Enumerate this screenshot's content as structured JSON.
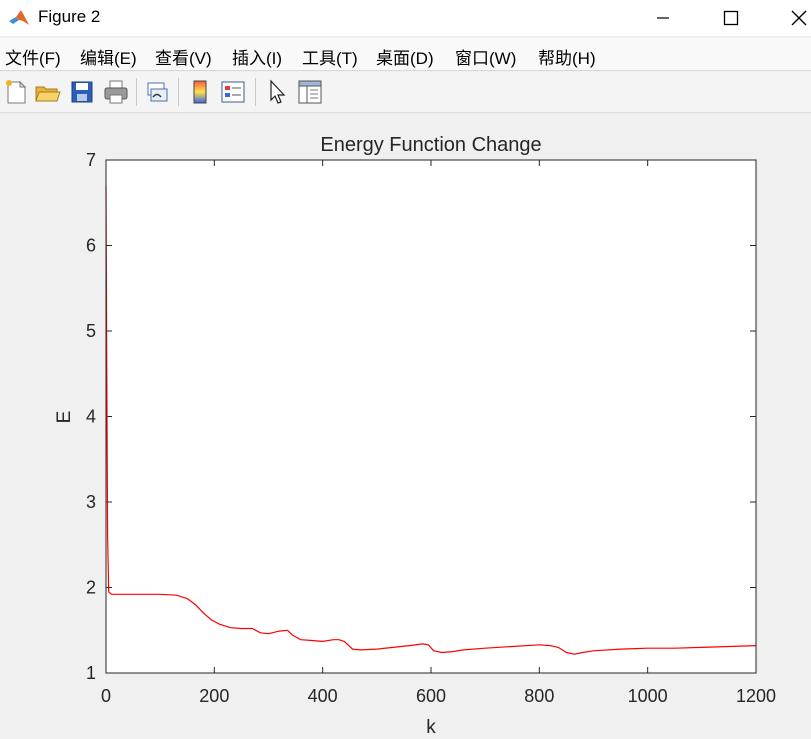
{
  "window": {
    "title": "Figure 2",
    "icon": "matlab-logo-icon",
    "controls": [
      "minimize-icon",
      "maximize-icon",
      "close-icon"
    ]
  },
  "menu": [
    {
      "label": "文件(F)"
    },
    {
      "label": "编辑(E)"
    },
    {
      "label": "查看(V)"
    },
    {
      "label": "插入(I)"
    },
    {
      "label": "工具(T)"
    },
    {
      "label": "桌面(D)"
    },
    {
      "label": "窗口(W)"
    },
    {
      "label": "帮助(H)"
    }
  ],
  "toolbar": {
    "tools": [
      "new-figure-icon",
      "open-file-icon",
      "save-icon",
      "print-icon",
      "link-plot-icon",
      "insert-colorbar-icon",
      "insert-legend-icon",
      "edit-plot-arrow-icon",
      "property-inspector-icon"
    ]
  },
  "colors": {
    "line": "#ff0000",
    "axes_background": "#ffffff",
    "figure_background": "#f0f0f0"
  },
  "chart_data": {
    "type": "line",
    "title": "Energy Function Change",
    "xlabel": "k",
    "ylabel": "E",
    "xlim": [
      0,
      1200
    ],
    "ylim": [
      1,
      7
    ],
    "xticks": [
      0,
      200,
      400,
      600,
      800,
      1000,
      1200
    ],
    "yticks": [
      1,
      2,
      3,
      4,
      5,
      6,
      7
    ],
    "xtick_labels": [
      "0",
      "200",
      "400",
      "600",
      "800",
      "1000",
      1200
    ],
    "ytick_labels": [
      "1",
      "2",
      "3",
      "4",
      "5",
      "6",
      "7"
    ],
    "grid": false,
    "series": [
      {
        "color": "#ff0000",
        "x": [
          0,
          1,
          2,
          3,
          5,
          10,
          50,
          100,
          130,
          150,
          165,
          180,
          195,
          210,
          230,
          250,
          270,
          285,
          300,
          320,
          335,
          345,
          360,
          380,
          400,
          420,
          430,
          440,
          455,
          470,
          500,
          530,
          560,
          585,
          595,
          605,
          620,
          640,
          660,
          700,
          750,
          800,
          820,
          835,
          850,
          865,
          880,
          900,
          950,
          1000,
          1050,
          1100,
          1150,
          1200
        ],
        "y": [
          6.7,
          5.2,
          3.8,
          2.6,
          1.95,
          1.92,
          1.92,
          1.92,
          1.91,
          1.87,
          1.8,
          1.7,
          1.62,
          1.57,
          1.53,
          1.52,
          1.52,
          1.47,
          1.46,
          1.49,
          1.5,
          1.44,
          1.39,
          1.38,
          1.37,
          1.39,
          1.39,
          1.37,
          1.28,
          1.27,
          1.28,
          1.3,
          1.32,
          1.34,
          1.33,
          1.26,
          1.24,
          1.25,
          1.27,
          1.29,
          1.31,
          1.33,
          1.32,
          1.3,
          1.24,
          1.22,
          1.24,
          1.26,
          1.28,
          1.29,
          1.29,
          1.3,
          1.31,
          1.32
        ]
      }
    ]
  }
}
